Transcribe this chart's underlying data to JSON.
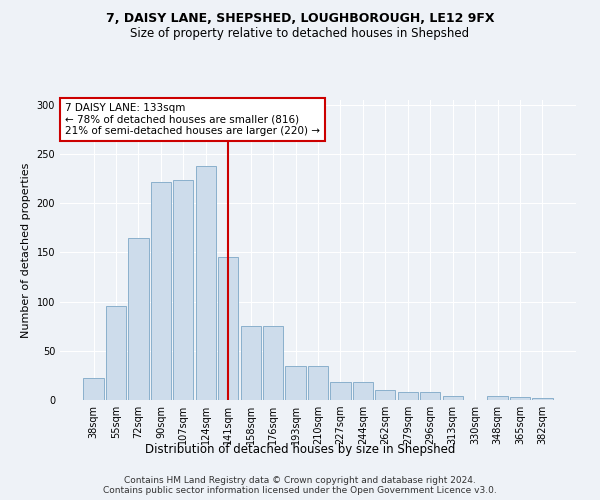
{
  "title1": "7, DAISY LANE, SHEPSHED, LOUGHBOROUGH, LE12 9FX",
  "title2": "Size of property relative to detached houses in Shepshed",
  "xlabel": "Distribution of detached houses by size in Shepshed",
  "ylabel": "Number of detached properties",
  "categories": [
    "38sqm",
    "55sqm",
    "72sqm",
    "90sqm",
    "107sqm",
    "124sqm",
    "141sqm",
    "158sqm",
    "176sqm",
    "193sqm",
    "210sqm",
    "227sqm",
    "244sqm",
    "262sqm",
    "279sqm",
    "296sqm",
    "313sqm",
    "330sqm",
    "348sqm",
    "365sqm",
    "382sqm"
  ],
  "values": [
    22,
    96,
    165,
    222,
    224,
    238,
    145,
    75,
    75,
    35,
    35,
    18,
    18,
    10,
    8,
    8,
    4,
    0,
    4,
    3,
    2
  ],
  "bar_color": "#cddceb",
  "bar_edge_color": "#8ab0cc",
  "red_line_x": 6.0,
  "annotation_text": "7 DAISY LANE: 133sqm\n← 78% of detached houses are smaller (816)\n21% of semi-detached houses are larger (220) →",
  "annotation_box_facecolor": "#ffffff",
  "annotation_box_edgecolor": "#cc0000",
  "red_line_color": "#cc0000",
  "footnote": "Contains HM Land Registry data © Crown copyright and database right 2024.\nContains public sector information licensed under the Open Government Licence v3.0.",
  "ylim": [
    0,
    305
  ],
  "background_color": "#eef2f7",
  "plot_bg_color": "#eef2f7",
  "title1_fontsize": 9,
  "title2_fontsize": 8.5,
  "ylabel_fontsize": 8,
  "xlabel_fontsize": 8.5,
  "tick_fontsize": 7,
  "footnote_fontsize": 6.5
}
